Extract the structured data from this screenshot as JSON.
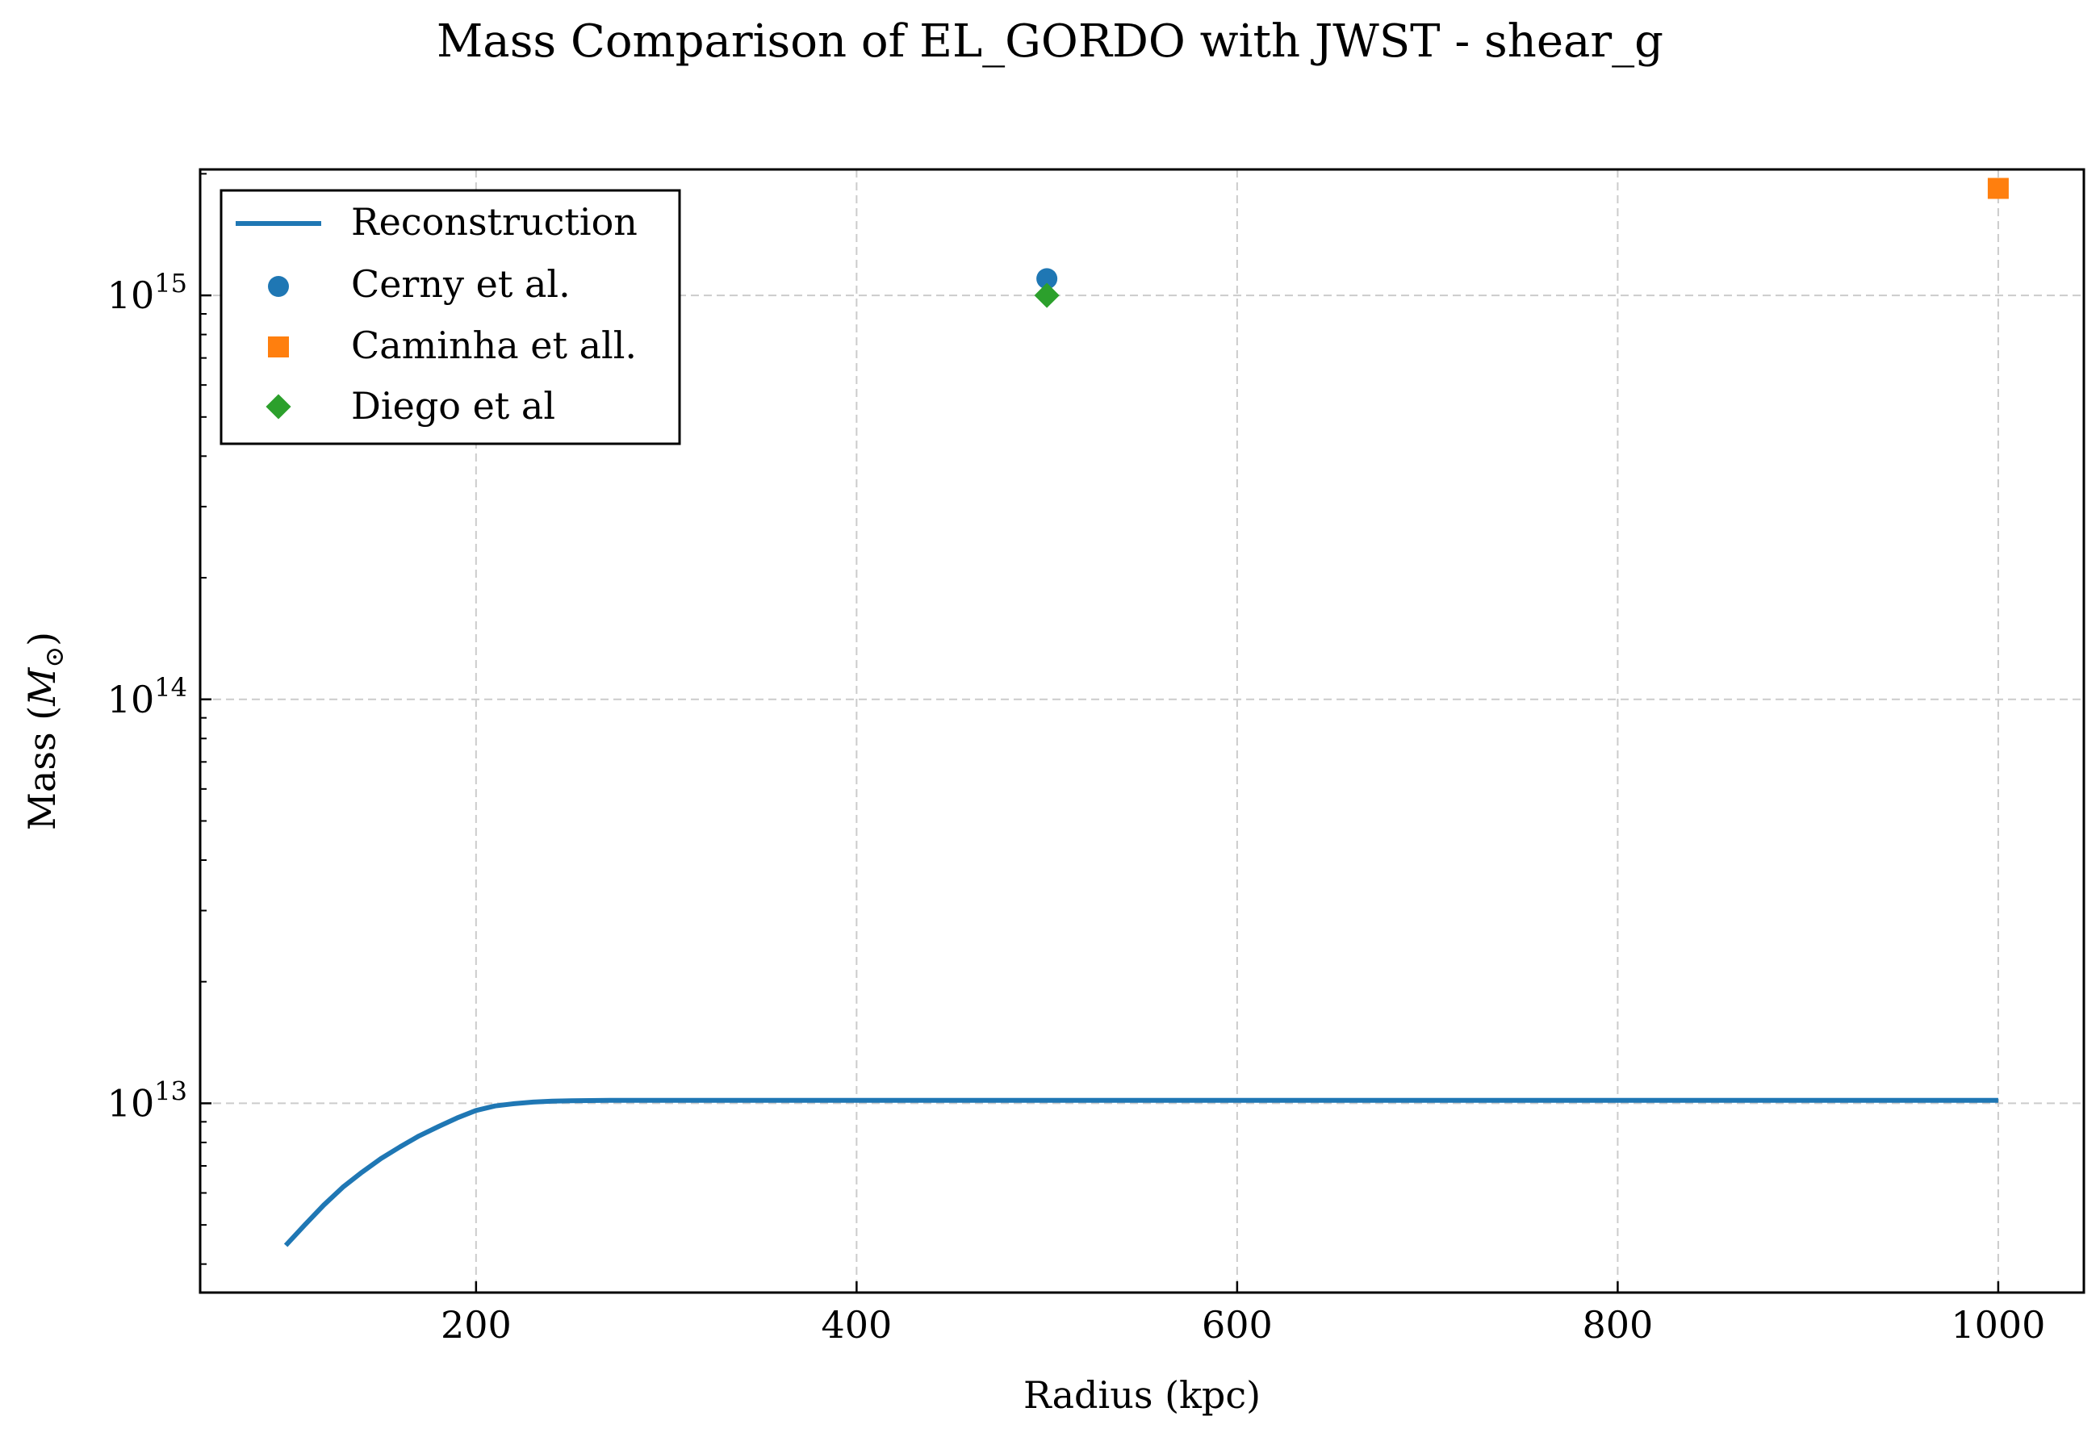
{
  "chart_data": {
    "type": "line",
    "title": "Mass Comparison of EL_GORDO with JWST - shear_g",
    "xlabel": "Radius (kpc)",
    "ylabel_text": "Mass (",
    "ylabel_symbol": "M",
    "ylabel_sub": "⊙",
    "ylabel_close": ")",
    "xlim": [
      55,
      1045
    ],
    "ylim": [
      3400000000000.0,
      2050000000000000.0
    ],
    "yscale": "log",
    "grid": true,
    "legend_position": "top-left",
    "x_ticks": [
      {
        "value": 200,
        "label": "200"
      },
      {
        "value": 400,
        "label": "400"
      },
      {
        "value": 600,
        "label": "600"
      },
      {
        "value": 800,
        "label": "800"
      },
      {
        "value": 1000,
        "label": "1000"
      }
    ],
    "y_major_ticks": [
      {
        "value": 10000000000000.0,
        "base": "10",
        "exp": "13"
      },
      {
        "value": 100000000000000.0,
        "base": "10",
        "exp": "14"
      },
      {
        "value": 1000000000000000.0,
        "base": "10",
        "exp": "15"
      }
    ],
    "y_minor_ticks": [
      4000000000000.0,
      5000000000000.0,
      6000000000000.0,
      7000000000000.0,
      8000000000000.0,
      9000000000000.0,
      20000000000000.0,
      30000000000000.0,
      40000000000000.0,
      50000000000000.0,
      60000000000000.0,
      70000000000000.0,
      80000000000000.0,
      90000000000000.0,
      200000000000000.0,
      300000000000000.0,
      400000000000000.0,
      500000000000000.0,
      600000000000000.0,
      700000000000000.0,
      800000000000000.0,
      900000000000000.0,
      2000000000000000.0
    ],
    "series": [
      {
        "name": "Reconstruction",
        "kind": "line",
        "color": "#1f77b4",
        "x": [
          100,
          110,
          120,
          130,
          140,
          150,
          160,
          170,
          180,
          190,
          200,
          210,
          220,
          230,
          240,
          250,
          260,
          270,
          280,
          300,
          400,
          500,
          600,
          700,
          800,
          900,
          1000
        ],
        "y": [
          4450000000000.0,
          5000000000000.0,
          5600000000000.0,
          6200000000000.0,
          6750000000000.0,
          7300000000000.0,
          7800000000000.0,
          8300000000000.0,
          8750000000000.0,
          9200000000000.0,
          9600000000000.0,
          9850000000000.0,
          9980000000000.0,
          10070000000000.0,
          10120000000000.0,
          10150000000000.0,
          10160000000000.0,
          10170000000000.0,
          10170000000000.0,
          10170000000000.0,
          10170000000000.0,
          10170000000000.0,
          10170000000000.0,
          10170000000000.0,
          10170000000000.0,
          10170000000000.0,
          10170000000000.0
        ]
      },
      {
        "name": "Cerny et al.",
        "kind": "scatter",
        "marker": "circle",
        "color": "#1f77b4",
        "x": [
          500
        ],
        "y": [
          1100000000000000.0
        ]
      },
      {
        "name": "Caminha et all.",
        "kind": "scatter",
        "marker": "square",
        "color": "#ff7f0e",
        "x": [
          1000
        ],
        "y": [
          1840000000000000.0
        ]
      },
      {
        "name": "Diego et al",
        "kind": "scatter",
        "marker": "diamond",
        "color": "#2ca02c",
        "x": [
          500
        ],
        "y": [
          1000000000000000.0
        ]
      }
    ]
  }
}
